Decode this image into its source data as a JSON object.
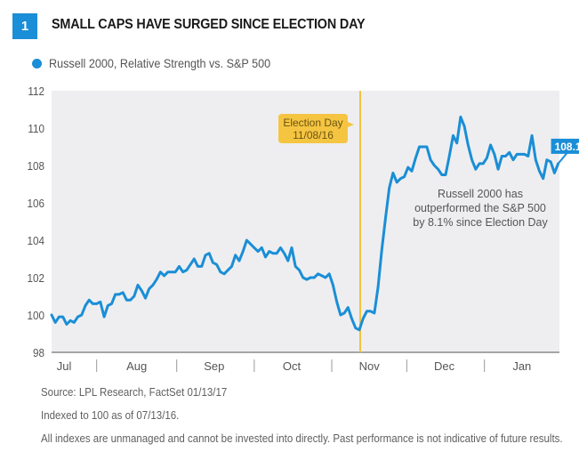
{
  "header": {
    "figure_number": "1",
    "title": "SMALL CAPS HAVE SURGED SINCE ELECTION DAY"
  },
  "colors": {
    "series": "#1a8ed6",
    "plot_bg": "#eeeef0",
    "event_line": "#f0c43c",
    "callout_bg": "#f5c542",
    "callout_text": "#6b5410",
    "axis_text": "#555555"
  },
  "footer": {
    "source": "Source: LPL Research, FactSet   01/13/17",
    "index_note": "Indexed to 100 as of 07/13/16.",
    "disclaimer": "All indexes are unmanaged and cannot be invested into directly. Past performance is not indicative of future results."
  },
  "chart_data": {
    "type": "line",
    "title": "SMALL CAPS HAVE SURGED SINCE ELECTION DAY",
    "xlabel": "",
    "ylabel": "",
    "x_unit": "days since 07/13/16",
    "xlim": [
      0,
      196
    ],
    "ylim": [
      98,
      112
    ],
    "yticks": [
      98,
      100,
      102,
      104,
      106,
      108,
      110,
      112
    ],
    "xtick_labels": [
      {
        "label": "Jul",
        "day": 5
      },
      {
        "label": "Aug",
        "day": 34
      },
      {
        "label": "Sep",
        "day": 65
      },
      {
        "label": "Oct",
        "day": 96
      },
      {
        "label": "Nov",
        "day": 127
      },
      {
        "label": "Dec",
        "day": 157
      },
      {
        "label": "Jan",
        "day": 188
      }
    ],
    "month_separators": [
      18,
      50,
      81,
      112,
      142,
      173
    ],
    "grid": false,
    "legend": {
      "position": "top-left",
      "entries": [
        "Russell 2000, Relative Strength vs. S&P 500"
      ]
    },
    "series": [
      {
        "name": "Russell 2000, Relative Strength vs. S&P 500",
        "points": [
          [
            0,
            100.0
          ],
          [
            1.5,
            99.6
          ],
          [
            3,
            99.9
          ],
          [
            4.5,
            99.9
          ],
          [
            6,
            99.5
          ],
          [
            7.5,
            99.7
          ],
          [
            9,
            99.6
          ],
          [
            10.5,
            99.9
          ],
          [
            12,
            100.0
          ],
          [
            13.5,
            100.5
          ],
          [
            15,
            100.8
          ],
          [
            16.5,
            100.6
          ],
          [
            18,
            100.6
          ],
          [
            19.5,
            100.7
          ],
          [
            21,
            99.9
          ],
          [
            22.5,
            100.5
          ],
          [
            24,
            100.6
          ],
          [
            25.5,
            101.1
          ],
          [
            27,
            101.1
          ],
          [
            28.5,
            101.2
          ],
          [
            30,
            100.8
          ],
          [
            31.5,
            100.8
          ],
          [
            33,
            101.0
          ],
          [
            34.5,
            101.6
          ],
          [
            36,
            101.3
          ],
          [
            37.5,
            100.9
          ],
          [
            39,
            101.4
          ],
          [
            40.5,
            101.6
          ],
          [
            42,
            101.9
          ],
          [
            43.5,
            102.3
          ],
          [
            45,
            102.1
          ],
          [
            46.5,
            102.3
          ],
          [
            48,
            102.3
          ],
          [
            49.5,
            102.3
          ],
          [
            51,
            102.6
          ],
          [
            52.5,
            102.3
          ],
          [
            54,
            102.4
          ],
          [
            55.5,
            102.7
          ],
          [
            57,
            103.0
          ],
          [
            58.5,
            102.6
          ],
          [
            60,
            102.6
          ],
          [
            61.5,
            103.2
          ],
          [
            63,
            103.3
          ],
          [
            64.5,
            102.8
          ],
          [
            66,
            102.7
          ],
          [
            67.5,
            102.3
          ],
          [
            69,
            102.2
          ],
          [
            70.5,
            102.4
          ],
          [
            72,
            102.6
          ],
          [
            73.5,
            103.2
          ],
          [
            75,
            102.9
          ],
          [
            76.5,
            103.4
          ],
          [
            78,
            104.0
          ],
          [
            79.5,
            103.8
          ],
          [
            81,
            103.6
          ],
          [
            82.5,
            103.4
          ],
          [
            84,
            103.6
          ],
          [
            85.5,
            103.1
          ],
          [
            87,
            103.4
          ],
          [
            88.5,
            103.3
          ],
          [
            90,
            103.3
          ],
          [
            91.5,
            103.6
          ],
          [
            93,
            103.3
          ],
          [
            94.5,
            102.9
          ],
          [
            96,
            103.6
          ],
          [
            97.5,
            102.6
          ],
          [
            99,
            102.4
          ],
          [
            100.5,
            102.0
          ],
          [
            102,
            101.9
          ],
          [
            103.5,
            102.0
          ],
          [
            105,
            102.0
          ],
          [
            106.5,
            102.2
          ],
          [
            108,
            102.1
          ],
          [
            109.5,
            102.0
          ],
          [
            111,
            102.2
          ],
          [
            112.5,
            101.6
          ],
          [
            114,
            100.7
          ],
          [
            115.5,
            100.0
          ],
          [
            117,
            100.1
          ],
          [
            118.5,
            100.4
          ],
          [
            120,
            99.8
          ],
          [
            121.5,
            99.3
          ],
          [
            123,
            99.2
          ],
          [
            124.5,
            99.8
          ],
          [
            126,
            100.2
          ],
          [
            127.5,
            100.2
          ],
          [
            129,
            100.1
          ],
          [
            130.5,
            101.5
          ],
          [
            132,
            103.5
          ],
          [
            133.5,
            105.2
          ],
          [
            135,
            106.8
          ],
          [
            136.5,
            107.6
          ],
          [
            138,
            107.1
          ],
          [
            139.5,
            107.3
          ],
          [
            141,
            107.4
          ],
          [
            142.5,
            107.9
          ],
          [
            144,
            107.7
          ],
          [
            145.5,
            108.4
          ],
          [
            147,
            109.0
          ],
          [
            148.5,
            109.0
          ],
          [
            150,
            109.0
          ],
          [
            151.5,
            108.3
          ],
          [
            153,
            108.0
          ],
          [
            154.5,
            107.8
          ],
          [
            156,
            107.5
          ],
          [
            157.5,
            107.5
          ],
          [
            159,
            108.5
          ],
          [
            160.5,
            109.6
          ],
          [
            162,
            109.2
          ],
          [
            163.5,
            110.6
          ],
          [
            165,
            110.1
          ],
          [
            166.5,
            109.1
          ],
          [
            168,
            108.3
          ],
          [
            169.5,
            107.8
          ],
          [
            171,
            108.1
          ],
          [
            172.5,
            108.1
          ],
          [
            174,
            108.4
          ],
          [
            175.5,
            109.1
          ],
          [
            177,
            108.6
          ],
          [
            178.5,
            107.8
          ],
          [
            180,
            108.5
          ],
          [
            181.5,
            108.5
          ],
          [
            183,
            108.7
          ],
          [
            184.5,
            108.3
          ],
          [
            186,
            108.6
          ],
          [
            187.5,
            108.6
          ],
          [
            189,
            108.6
          ],
          [
            190.5,
            108.5
          ],
          [
            192,
            109.6
          ],
          [
            193.5,
            108.3
          ],
          [
            195,
            107.7
          ],
          [
            196.5,
            107.3
          ],
          [
            198,
            108.3
          ],
          [
            199.5,
            108.2
          ],
          [
            201,
            107.6
          ],
          [
            202.5,
            108.1
          ]
        ],
        "end_label": "108.1"
      }
    ],
    "annotations": [
      {
        "type": "vertical-line",
        "day": 118,
        "label_lines": [
          "Election Day",
          "11/08/16"
        ]
      },
      {
        "type": "text",
        "lines": [
          "Russell 2000 has",
          "outperformed the S&P 500",
          "by 8.1% since Election Day"
        ]
      }
    ]
  }
}
